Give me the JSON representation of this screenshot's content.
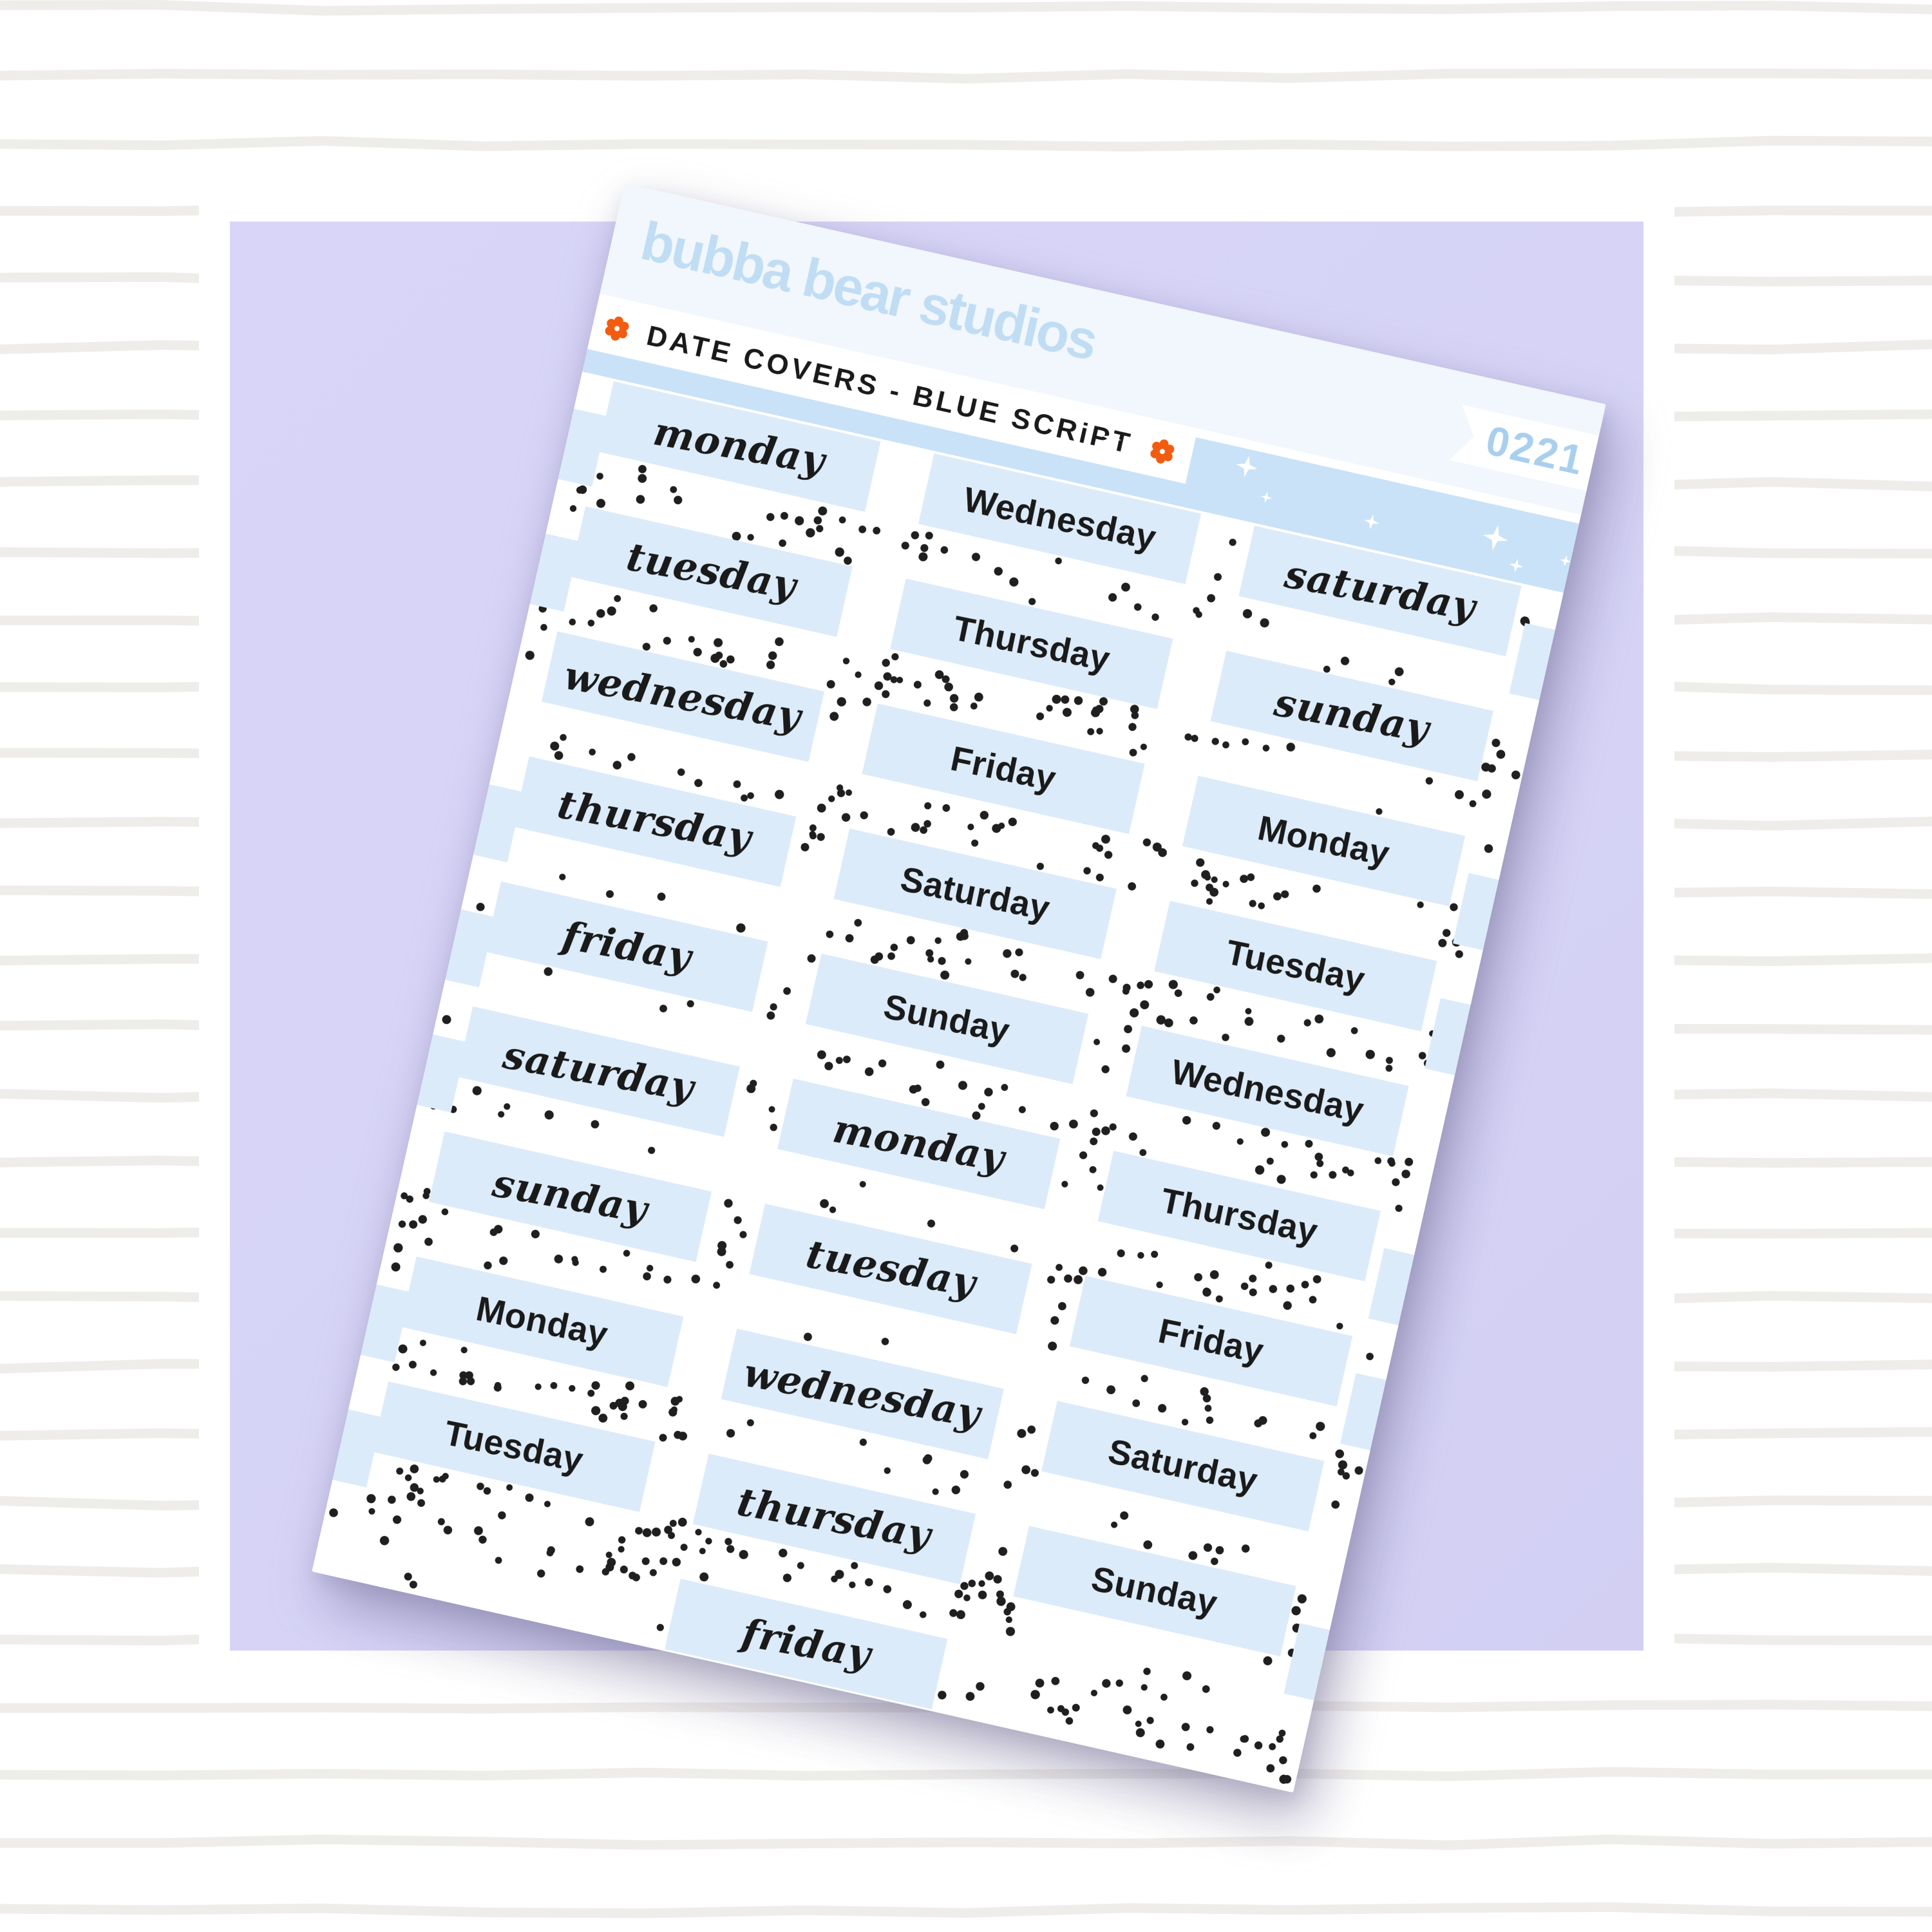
{
  "brand": {
    "logo_text": "bubba bear studios"
  },
  "sheet": {
    "product_label": "DATE COVERS - BLUE SCRiPT",
    "product_code": "0221",
    "stickers": [
      {
        "col": 1,
        "row": 1,
        "text": "monday",
        "style": "script"
      },
      {
        "col": 1,
        "row": 2,
        "text": "tuesday",
        "style": "script"
      },
      {
        "col": 1,
        "row": 3,
        "text": "wednesday",
        "style": "script"
      },
      {
        "col": 1,
        "row": 4,
        "text": "thursday",
        "style": "script"
      },
      {
        "col": 1,
        "row": 5,
        "text": "friday",
        "style": "script"
      },
      {
        "col": 1,
        "row": 6,
        "text": "saturday",
        "style": "script"
      },
      {
        "col": 1,
        "row": 7,
        "text": "sunday",
        "style": "script"
      },
      {
        "col": 1,
        "row": 8,
        "text": "Monday",
        "style": "bold"
      },
      {
        "col": 1,
        "row": 9,
        "text": "Tuesday",
        "style": "bold"
      },
      {
        "col": 2,
        "row": 1,
        "text": "Wednesday",
        "style": "bold"
      },
      {
        "col": 2,
        "row": 2,
        "text": "Thursday",
        "style": "bold"
      },
      {
        "col": 2,
        "row": 3,
        "text": "Friday",
        "style": "bold"
      },
      {
        "col": 2,
        "row": 4,
        "text": "Saturday",
        "style": "bold"
      },
      {
        "col": 2,
        "row": 5,
        "text": "Sunday",
        "style": "bold"
      },
      {
        "col": 2,
        "row": 6,
        "text": "monday",
        "style": "script"
      },
      {
        "col": 2,
        "row": 7,
        "text": "tuesday",
        "style": "script"
      },
      {
        "col": 2,
        "row": 8,
        "text": "wednesday",
        "style": "script"
      },
      {
        "col": 2,
        "row": 9,
        "text": "thursday",
        "style": "script"
      },
      {
        "col": 2,
        "row": 10,
        "text": "friday",
        "style": "script"
      },
      {
        "col": 3,
        "row": 1,
        "text": "saturday",
        "style": "script"
      },
      {
        "col": 3,
        "row": 2,
        "text": "sunday",
        "style": "script"
      },
      {
        "col": 3,
        "row": 3,
        "text": "Monday",
        "style": "bold"
      },
      {
        "col": 3,
        "row": 4,
        "text": "Tuesday",
        "style": "bold"
      },
      {
        "col": 3,
        "row": 5,
        "text": "Wednesday",
        "style": "bold"
      },
      {
        "col": 3,
        "row": 6,
        "text": "Thursday",
        "style": "bold"
      },
      {
        "col": 3,
        "row": 7,
        "text": "Friday",
        "style": "bold"
      },
      {
        "col": 3,
        "row": 8,
        "text": "Saturday",
        "style": "bold"
      },
      {
        "col": 3,
        "row": 9,
        "text": "Sunday",
        "style": "bold"
      }
    ]
  },
  "icons": {
    "flower": "6-petal orange flower",
    "sparkle": "4-point white sparkle"
  },
  "colors": {
    "backdrop_purple": "#d6d3f6",
    "stripe_gray": "#efedea",
    "header_band_blue": "#c9e2f7",
    "sticker_label_blue": "#dcebf9",
    "logo_blue": "#c1ddf4",
    "product_code_blue": "#a9cfee",
    "flower_orange": "#f25c11",
    "lettering_black": "#1a1a1a"
  }
}
